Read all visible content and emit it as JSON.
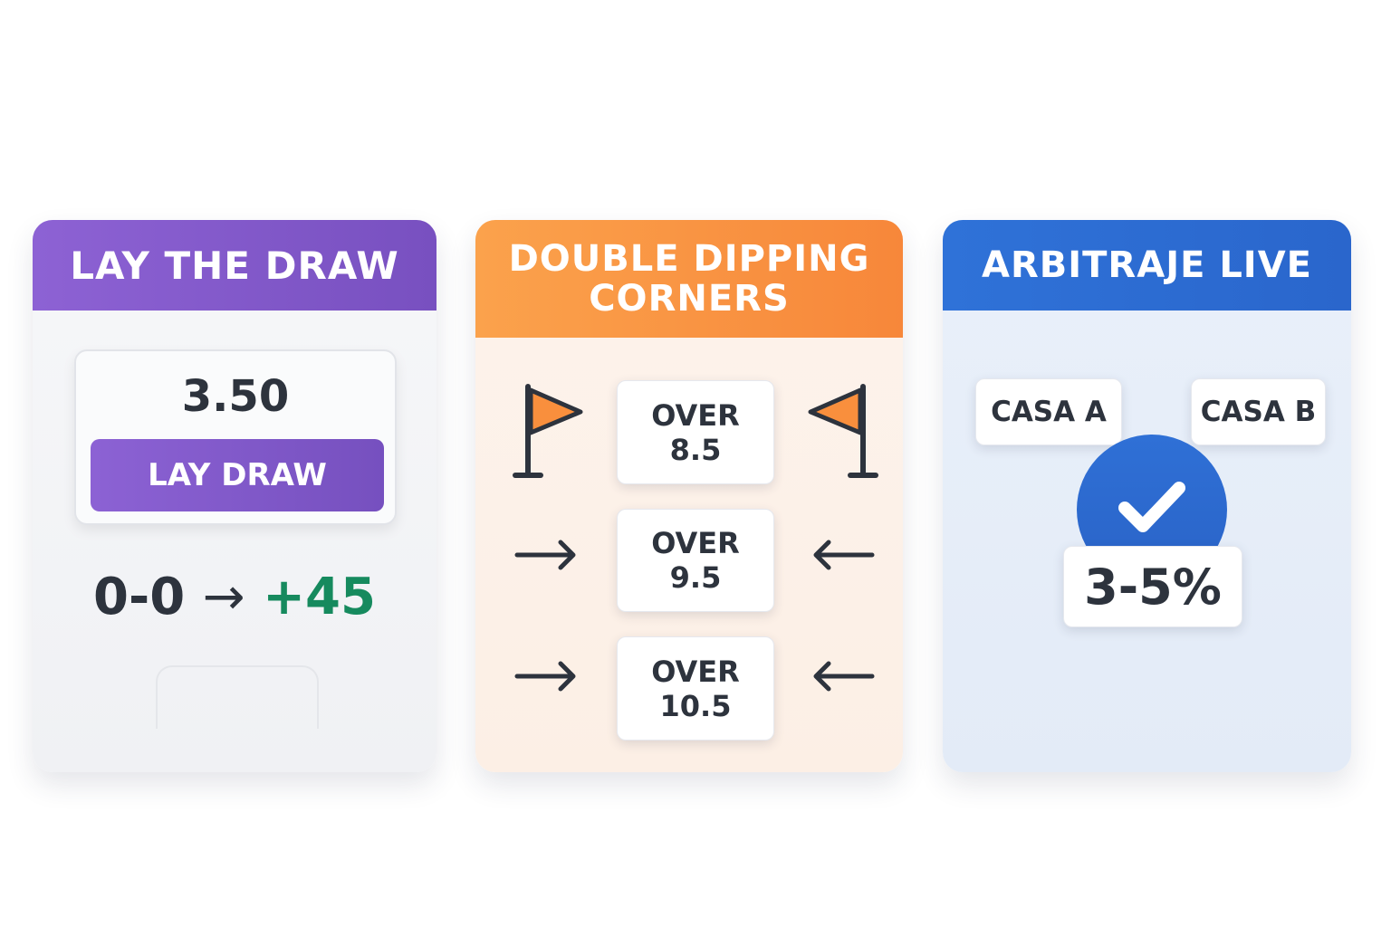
{
  "cards": [
    {
      "title": "LAY THE DRAW",
      "odds": "3.50",
      "button": "LAY DRAW",
      "score": "0-0",
      "arrow": "→",
      "profit": "+45",
      "accent": "#8459cc",
      "profit_color": "#168a5e"
    },
    {
      "title_line1": "DOUBLE DIPPING",
      "title_line2": "CORNERS",
      "lines": [
        "OVER\n8.5",
        "OVER\n9.5",
        "OVER\n10.5"
      ],
      "accent": "#f98f3d"
    },
    {
      "title": "ARBITRAJE LIVE",
      "book_a": "CASA A",
      "book_b": "CASA B",
      "margin": "3-5%",
      "accent": "#2f6fd6"
    }
  ]
}
